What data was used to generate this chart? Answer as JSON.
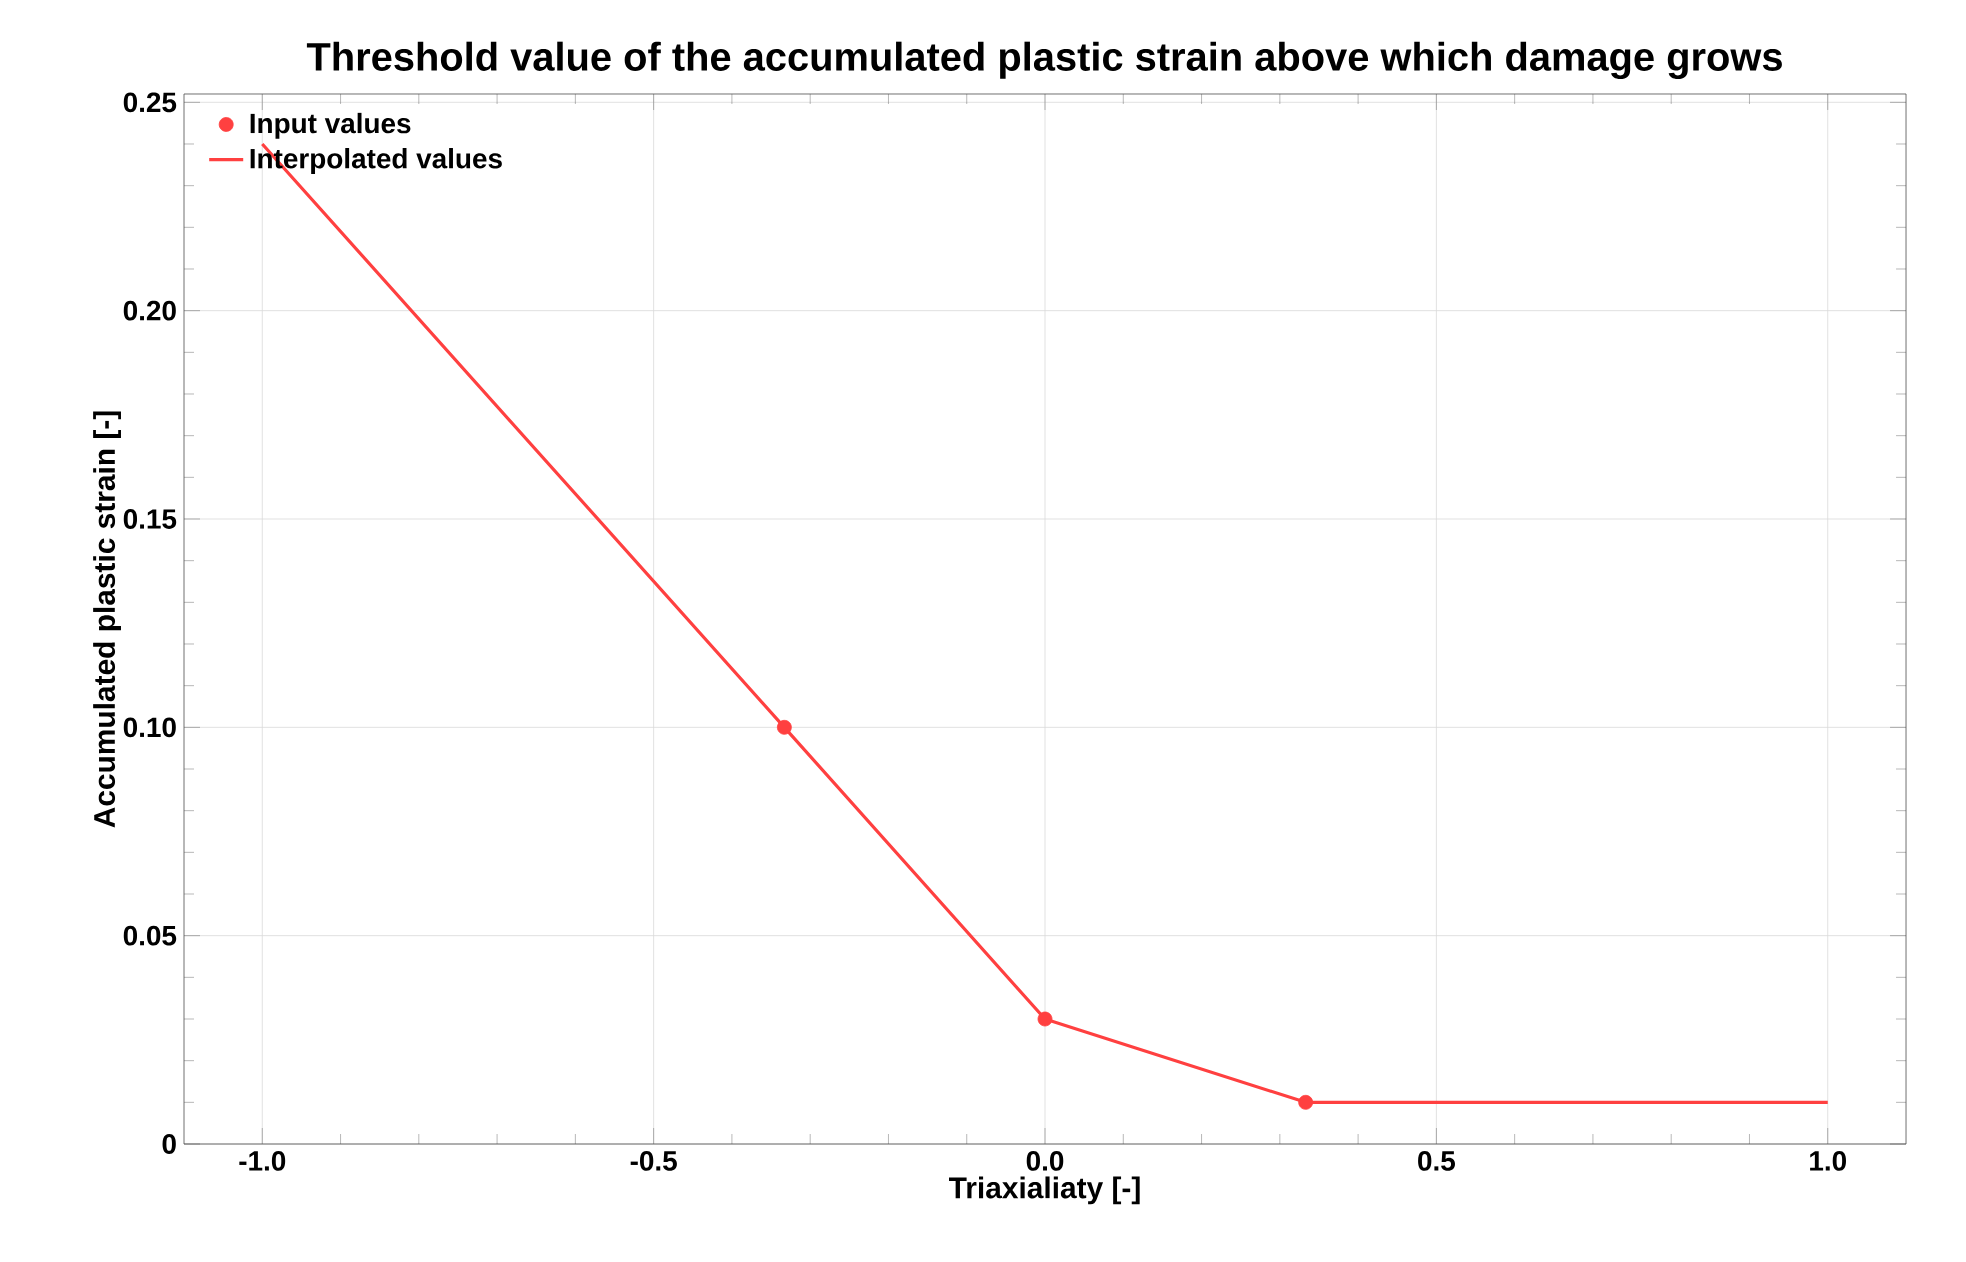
{
  "chart_data": {
    "type": "line",
    "title": "Threshold value of the accumulated plastic strain above which damage grows",
    "xlabel": "Triaxialiaty [-]",
    "ylabel": "Accumulated plastic strain [-]",
    "xlim": [
      -1.1,
      1.1
    ],
    "ylim": [
      0,
      0.252
    ],
    "xticks": [
      {
        "value": -1,
        "label": "-1.0"
      },
      {
        "value": -0.5,
        "label": "-0.5"
      },
      {
        "value": 0,
        "label": "0.0"
      },
      {
        "value": 0.5,
        "label": "0.5"
      },
      {
        "value": 1,
        "label": "1.0"
      }
    ],
    "yticks": [
      {
        "value": 0,
        "label": "0"
      },
      {
        "value": 0.05,
        "label": "0.05"
      },
      {
        "value": 0.1,
        "label": "0.10"
      },
      {
        "value": 0.15,
        "label": "0.15"
      },
      {
        "value": 0.2,
        "label": "0.20"
      },
      {
        "value": 0.25,
        "label": "0.25"
      }
    ],
    "grid": true,
    "legend": "top left",
    "series": [
      {
        "name": "Input values",
        "type": "scatter",
        "marker": "circle",
        "color": "#ff4040",
        "x": [
          -0.333,
          0,
          0.333
        ],
        "values": [
          0.1,
          0.03,
          0.01
        ]
      },
      {
        "name": "Interpolated values",
        "type": "line",
        "color": "#ff4040",
        "x": [
          -1,
          -0.333,
          0,
          0.333,
          1
        ],
        "values": [
          0.24,
          0.1,
          0.03,
          0.01,
          0.01
        ]
      }
    ]
  }
}
